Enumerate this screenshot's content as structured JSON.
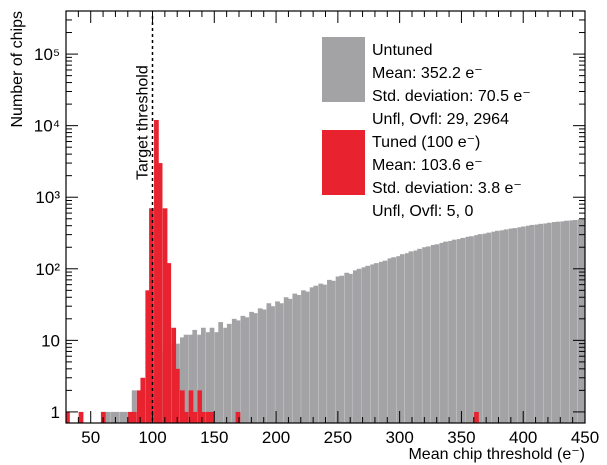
{
  "chart_data": {
    "type": "bar",
    "xlabel": "Mean chip threshold (e⁻)",
    "ylabel": "Number of chips",
    "xlim": [
      30,
      450
    ],
    "ylim": [
      0.7,
      400000
    ],
    "yscale": "log",
    "bin_width": 3.5,
    "x_ticks": [
      50,
      100,
      150,
      200,
      250,
      300,
      350,
      400,
      450
    ],
    "y_ticks": [
      {
        "value": 1,
        "label": "1"
      },
      {
        "value": 10,
        "label": "10"
      },
      {
        "value": 100,
        "label": "10²"
      },
      {
        "value": 1000,
        "label": "10³"
      },
      {
        "value": 10000,
        "label": "10⁴"
      },
      {
        "value": 100000,
        "label": "10⁵"
      }
    ],
    "annotation": {
      "text": "Target threshold",
      "x": 100
    },
    "series": [
      {
        "name": "Untuned",
        "color": "#a3a3a6",
        "legend": [
          "Mean: 352.2 e⁻",
          "Std. deviation: 70.5 e⁻",
          "Unfl, Ovfl: 29, 2964"
        ],
        "points": [
          [
            61,
            1
          ],
          [
            64,
            1
          ],
          [
            68,
            1
          ],
          [
            71,
            1
          ],
          [
            75,
            1
          ],
          [
            78,
            1
          ],
          [
            82,
            1
          ],
          [
            85,
            2
          ],
          [
            89,
            1
          ],
          [
            92,
            2
          ],
          [
            96,
            2
          ],
          [
            99,
            3
          ],
          [
            103,
            4
          ],
          [
            106,
            5
          ],
          [
            110,
            7
          ],
          [
            113,
            8
          ],
          [
            117,
            9
          ],
          [
            120,
            9
          ],
          [
            124,
            11
          ],
          [
            127,
            12
          ],
          [
            131,
            12
          ],
          [
            134,
            14
          ],
          [
            138,
            12
          ],
          [
            141,
            15
          ],
          [
            145,
            13
          ],
          [
            148,
            15
          ],
          [
            152,
            13
          ],
          [
            155,
            18
          ],
          [
            159,
            15
          ],
          [
            162,
            17
          ],
          [
            166,
            20
          ],
          [
            169,
            19
          ],
          [
            173,
            22
          ],
          [
            176,
            21
          ],
          [
            180,
            25
          ],
          [
            183,
            24
          ],
          [
            187,
            28
          ],
          [
            190,
            27
          ],
          [
            194,
            33
          ],
          [
            197,
            30
          ],
          [
            201,
            35
          ],
          [
            204,
            33
          ],
          [
            208,
            40
          ],
          [
            211,
            38
          ],
          [
            215,
            45
          ],
          [
            218,
            43
          ],
          [
            222,
            50
          ],
          [
            225,
            48
          ],
          [
            229,
            55
          ],
          [
            232,
            58
          ],
          [
            236,
            62
          ],
          [
            239,
            60
          ],
          [
            243,
            70
          ],
          [
            246,
            68
          ],
          [
            250,
            78
          ],
          [
            253,
            80
          ],
          [
            257,
            88
          ],
          [
            260,
            85
          ],
          [
            264,
            95
          ],
          [
            267,
            100
          ],
          [
            271,
            105
          ],
          [
            274,
            110
          ],
          [
            278,
            115
          ],
          [
            281,
            120
          ],
          [
            285,
            125
          ],
          [
            288,
            130
          ],
          [
            292,
            140
          ],
          [
            295,
            145
          ],
          [
            299,
            150
          ],
          [
            302,
            160
          ],
          [
            306,
            165
          ],
          [
            309,
            175
          ],
          [
            313,
            180
          ],
          [
            316,
            190
          ],
          [
            320,
            200
          ],
          [
            323,
            205
          ],
          [
            327,
            215
          ],
          [
            330,
            220
          ],
          [
            334,
            230
          ],
          [
            337,
            240
          ],
          [
            341,
            245
          ],
          [
            344,
            255
          ],
          [
            348,
            260
          ],
          [
            351,
            270
          ],
          [
            355,
            280
          ],
          [
            358,
            285
          ],
          [
            362,
            295
          ],
          [
            365,
            305
          ],
          [
            369,
            310
          ],
          [
            372,
            320
          ],
          [
            376,
            330
          ],
          [
            379,
            340
          ],
          [
            383,
            345
          ],
          [
            386,
            355
          ],
          [
            390,
            365
          ],
          [
            393,
            370
          ],
          [
            397,
            380
          ],
          [
            400,
            390
          ],
          [
            404,
            400
          ],
          [
            407,
            410
          ],
          [
            411,
            415
          ],
          [
            414,
            425
          ],
          [
            418,
            430
          ],
          [
            421,
            440
          ],
          [
            425,
            450
          ],
          [
            428,
            455
          ],
          [
            432,
            460
          ],
          [
            435,
            470
          ],
          [
            439,
            475
          ],
          [
            442,
            480
          ],
          [
            446,
            490
          ],
          [
            449,
            495
          ]
        ]
      },
      {
        "name": "Tuned (100 e⁻)",
        "color": "#e8222f",
        "legend": [
          "Mean: 103.6 e⁻",
          "Std. deviation: 3.8 e⁻",
          "Unfl, Ovfl: 5, 0"
        ],
        "points": [
          [
            31,
            1
          ],
          [
            42,
            1
          ],
          [
            60,
            1
          ],
          [
            82,
            1
          ],
          [
            85,
            1
          ],
          [
            89,
            2
          ],
          [
            92,
            3
          ],
          [
            96,
            50
          ],
          [
            99,
            700
          ],
          [
            103,
            12000
          ],
          [
            106,
            3000
          ],
          [
            110,
            700
          ],
          [
            113,
            120
          ],
          [
            117,
            15
          ],
          [
            120,
            4
          ],
          [
            124,
            2
          ],
          [
            127,
            1
          ],
          [
            131,
            2
          ],
          [
            134,
            1
          ],
          [
            138,
            2
          ],
          [
            141,
            1
          ],
          [
            145,
            1
          ],
          [
            148,
            1
          ],
          [
            169,
            1
          ],
          [
            362,
            1
          ]
        ]
      }
    ]
  }
}
